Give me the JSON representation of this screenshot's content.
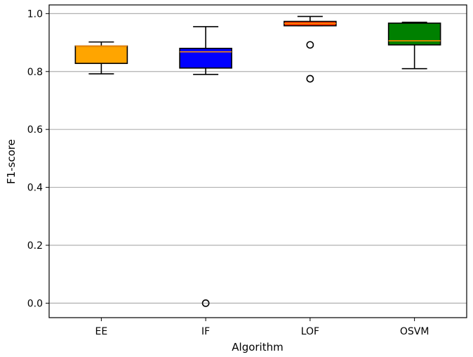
{
  "chart_data": {
    "type": "boxplot",
    "xlabel": "Algorithm",
    "ylabel": "F1-score",
    "ylim": [
      -0.05,
      1.03
    ],
    "yticks": [
      0.0,
      0.2,
      0.4,
      0.6,
      0.8,
      1.0
    ],
    "ytick_labels": [
      "0.0",
      "0.2",
      "0.4",
      "0.6",
      "0.8",
      "1.0"
    ],
    "grid": "horizontal",
    "categories": [
      "EE",
      "IF",
      "LOF",
      "OSVM"
    ],
    "boxes": [
      {
        "category": "EE",
        "color": "#FFA500",
        "whisker_low": 0.792,
        "q1": 0.828,
        "median": 0.888,
        "q3": 0.888,
        "whisker_high": 0.902,
        "outliers": []
      },
      {
        "category": "IF",
        "color": "#0000FF",
        "whisker_low": 0.79,
        "q1": 0.812,
        "median": 0.868,
        "q3": 0.88,
        "whisker_high": 0.955,
        "outliers": [
          0.0
        ]
      },
      {
        "category": "LOF",
        "color": "#FF3300",
        "whisker_low": 0.958,
        "q1": 0.958,
        "median": 0.966,
        "q3": 0.973,
        "whisker_high": 0.99,
        "outliers": [
          0.892,
          0.775
        ]
      },
      {
        "category": "OSVM",
        "color": "#008000",
        "whisker_low": 0.81,
        "q1": 0.892,
        "median": 0.906,
        "q3": 0.967,
        "whisker_high": 0.97,
        "outliers": []
      }
    ],
    "median_color": "#FF8C00"
  }
}
